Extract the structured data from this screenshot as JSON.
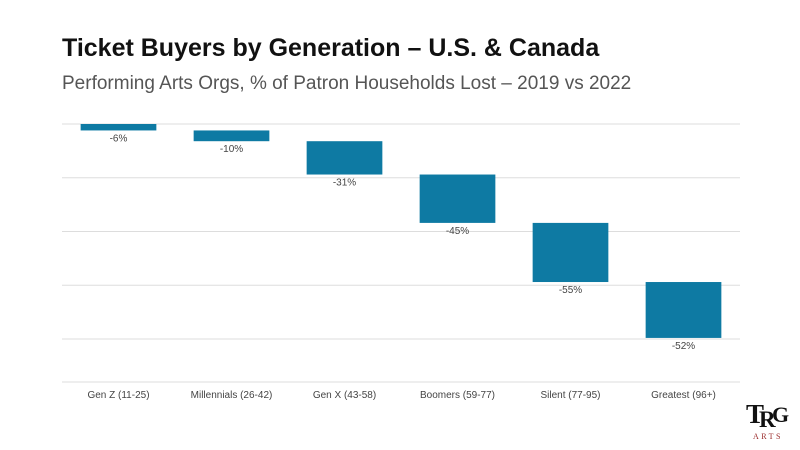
{
  "chart_data": {
    "type": "waterfall",
    "title": "Ticket Buyers by Generation – U.S. & Canada",
    "subtitle": "Performing Arts Orgs, % of Patron Households Lost – 2019 vs 2022",
    "xlabel": "",
    "ylabel": "",
    "categories": [
      "Gen Z (11-25)",
      "Millennials (26-42)",
      "Gen X (43-58)",
      "Boomers (59-77)",
      "Silent (77-95)",
      "Greatest (96+)"
    ],
    "values": [
      -6,
      -10,
      -31,
      -45,
      -55,
      -52
    ],
    "value_labels": [
      "-6%",
      "-10%",
      "-31%",
      "-45%",
      "-55%",
      "-52%"
    ],
    "ylim": [
      -240,
      0
    ],
    "gridlines": [
      0,
      -50,
      -100,
      -150,
      -200
    ],
    "grid": true,
    "bar_color": "#0e7aa3"
  },
  "logo": {
    "monogram": "TRG",
    "text": "ARTS",
    "color": "#111111",
    "accent": "#9a2a2a"
  }
}
